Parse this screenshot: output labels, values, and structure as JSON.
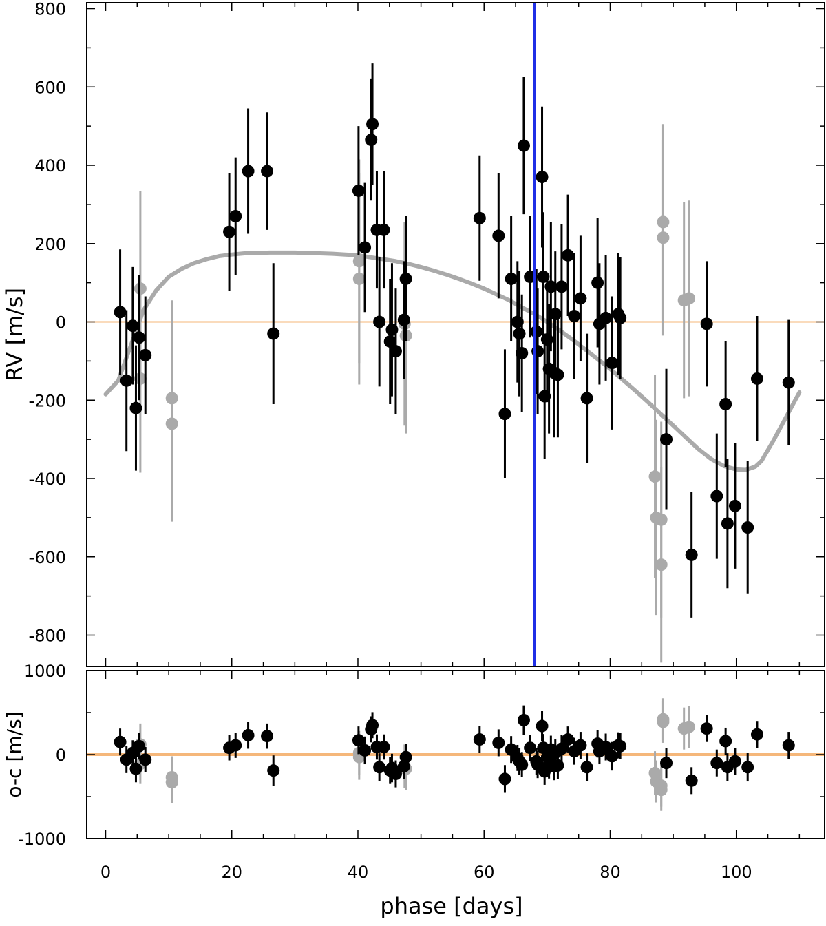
{
  "chart_data": [
    {
      "type": "scatter",
      "panel": "rv",
      "title": "",
      "xlabel": "phase [days]",
      "ylabel": "RV [m/s]",
      "xlim": [
        -3,
        114
      ],
      "ylim": [
        -880,
        815
      ],
      "x_ticks": [
        0,
        20,
        40,
        60,
        80,
        100
      ],
      "x_tick_labels": [
        "0",
        "20",
        "40",
        "60",
        "80",
        "100"
      ],
      "y_ticks": [
        -800,
        -600,
        -400,
        -200,
        0,
        200,
        400,
        600,
        800
      ],
      "y_tick_labels": [
        "-800",
        "-600",
        "-400",
        "-200",
        "0",
        "200",
        "400",
        "600",
        "800"
      ],
      "grid": false,
      "zero_line_color": "#f5b77a",
      "vertical_line": {
        "x": 68,
        "color": "#1f2fe6"
      },
      "series": [
        {
          "color": "#000000",
          "points": [
            [
              2.3,
              25,
              160
            ],
            [
              3.3,
              -150,
              180
            ],
            [
              4.3,
              -10,
              150
            ],
            [
              4.8,
              -220,
              160
            ],
            [
              5.3,
              -40,
              160
            ],
            [
              6.3,
              -85,
              150
            ],
            [
              19.6,
              230,
              150
            ],
            [
              20.6,
              270,
              150
            ],
            [
              22.6,
              385,
              160
            ],
            [
              25.6,
              385,
              150
            ],
            [
              26.6,
              -30,
              180
            ],
            [
              40.1,
              335,
              165
            ],
            [
              41.1,
              190,
              165
            ],
            [
              42.1,
              465,
              155
            ],
            [
              42.3,
              505,
              155
            ],
            [
              43.0,
              235,
              150
            ],
            [
              43.4,
              0,
              165
            ],
            [
              44.1,
              235,
              150
            ],
            [
              45.1,
              -50,
              160
            ],
            [
              45.4,
              -20,
              170
            ],
            [
              46.0,
              -75,
              160
            ],
            [
              47.3,
              5,
              150
            ],
            [
              47.6,
              110,
              160
            ],
            [
              59.3,
              265,
              160
            ],
            [
              62.3,
              220,
              160
            ],
            [
              63.3,
              -235,
              165
            ],
            [
              64.3,
              110,
              160
            ],
            [
              65.3,
              0,
              155
            ],
            [
              65.6,
              -30,
              160
            ],
            [
              66.0,
              -80,
              150
            ],
            [
              66.3,
              450,
              175
            ],
            [
              67.3,
              115,
              155
            ],
            [
              68.3,
              -25,
              160
            ],
            [
              68.5,
              -75,
              160
            ],
            [
              69.2,
              370,
              180
            ],
            [
              69.4,
              115,
              165
            ],
            [
              69.6,
              -190,
              160
            ],
            [
              70.0,
              -45,
              160
            ],
            [
              70.3,
              -120,
              165
            ],
            [
              70.6,
              90,
              165
            ],
            [
              71.1,
              -130,
              165
            ],
            [
              71.3,
              20,
              160
            ],
            [
              71.7,
              -135,
              160
            ],
            [
              72.3,
              90,
              160
            ],
            [
              73.3,
              170,
              155
            ],
            [
              74.3,
              15,
              160
            ],
            [
              75.3,
              60,
              160
            ],
            [
              76.3,
              -195,
              165
            ],
            [
              78.0,
              100,
              165
            ],
            [
              78.3,
              -5,
              155
            ],
            [
              79.3,
              10,
              160
            ],
            [
              80.3,
              -105,
              170
            ],
            [
              81.3,
              20,
              155
            ],
            [
              81.6,
              10,
              155
            ],
            [
              88.9,
              -300,
              180
            ],
            [
              95.3,
              -5,
              160
            ],
            [
              96.9,
              -445,
              160
            ],
            [
              98.3,
              -210,
              160
            ],
            [
              98.6,
              -515,
              165
            ],
            [
              99.8,
              -470,
              160
            ],
            [
              101.8,
              -525,
              170
            ],
            [
              103.3,
              -145,
              160
            ],
            [
              108.3,
              -155,
              160
            ],
            [
              92.9,
              -595,
              160
            ]
          ]
        },
        {
          "color": "#aaaaaa",
          "points": [
            [
              5.5,
              85,
              250
            ],
            [
              5.5,
              -145,
              240
            ],
            [
              10.5,
              -195,
              250
            ],
            [
              10.5,
              -260,
              250
            ],
            [
              40.2,
              155,
              260
            ],
            [
              40.2,
              110,
              270
            ],
            [
              47.4,
              -5,
              260
            ],
            [
              47.6,
              -35,
              250
            ],
            [
              87.1,
              -395,
              260
            ],
            [
              87.3,
              -500,
              250
            ],
            [
              88.1,
              -505,
              250
            ],
            [
              88.1,
              -620,
              250
            ],
            [
              88.4,
              255,
              250
            ],
            [
              88.4,
              215,
              250
            ],
            [
              91.7,
              55,
              250
            ],
            [
              92.5,
              60,
              250
            ]
          ]
        }
      ],
      "model_curve": {
        "color": "#aaaaaa",
        "x": [
          0,
          2,
          4,
          6,
          8,
          10,
          12,
          14,
          16,
          18,
          20,
          22,
          24,
          26,
          28,
          30,
          32,
          34,
          36,
          38,
          40,
          42,
          44,
          46,
          48,
          50,
          52,
          54,
          56,
          58,
          60,
          62,
          64,
          66,
          68,
          70,
          72,
          74,
          76,
          78,
          80,
          82,
          84,
          86,
          88,
          90,
          92,
          94,
          96,
          98,
          100,
          101.5,
          103,
          104,
          106,
          108,
          110
        ],
        "y": [
          -185,
          -150,
          -60,
          30,
          80,
          115,
          135,
          150,
          160,
          168,
          172,
          175,
          176,
          177,
          177,
          177,
          176,
          175,
          174,
          172,
          170,
          165,
          160,
          155,
          148,
          140,
          131,
          121,
          110,
          98,
          85,
          70,
          55,
          37,
          20,
          0,
          -22,
          -45,
          -70,
          -95,
          -120,
          -148,
          -176,
          -205,
          -235,
          -265,
          -295,
          -325,
          -350,
          -368,
          -377,
          -378,
          -370,
          -355,
          -300,
          -240,
          -180
        ]
      }
    },
    {
      "type": "scatter",
      "panel": "residuals",
      "title": "",
      "xlabel": "phase [days]",
      "ylabel": "o-c [m/s]",
      "xlim": [
        -3,
        114
      ],
      "ylim": [
        -1000,
        1000
      ],
      "x_ticks": [
        0,
        20,
        40,
        60,
        80,
        100
      ],
      "x_tick_labels": [
        "0",
        "20",
        "40",
        "60",
        "80",
        "100"
      ],
      "y_ticks": [
        -1000,
        0,
        1000
      ],
      "y_tick_labels": [
        "-1000",
        "0",
        "1000"
      ],
      "grid": false,
      "zero_line_color": "#f5b77a",
      "series": [
        {
          "color": "#000000",
          "points": [
            [
              2.3,
              150,
              160
            ],
            [
              3.3,
              -60,
              160
            ],
            [
              4.3,
              20,
              150
            ],
            [
              4.8,
              -170,
              160
            ],
            [
              5.3,
              100,
              160
            ],
            [
              6.3,
              -60,
              150
            ],
            [
              19.6,
              80,
              150
            ],
            [
              20.6,
              110,
              150
            ],
            [
              22.6,
              230,
              160
            ],
            [
              25.6,
              220,
              150
            ],
            [
              26.6,
              -190,
              180
            ],
            [
              40.1,
              170,
              165
            ],
            [
              41.1,
              50,
              165
            ],
            [
              42.1,
              300,
              155
            ],
            [
              42.3,
              350,
              155
            ],
            [
              43.0,
              90,
              150
            ],
            [
              43.4,
              -150,
              165
            ],
            [
              44.1,
              90,
              150
            ],
            [
              45.1,
              -190,
              160
            ],
            [
              45.4,
              -160,
              170
            ],
            [
              46.0,
              -230,
              160
            ],
            [
              47.3,
              -140,
              150
            ],
            [
              47.6,
              -30,
              160
            ],
            [
              59.3,
              180,
              160
            ],
            [
              62.3,
              140,
              160
            ],
            [
              63.3,
              -290,
              165
            ],
            [
              64.3,
              60,
              160
            ],
            [
              65.3,
              -40,
              155
            ],
            [
              65.6,
              -80,
              160
            ],
            [
              66.0,
              -120,
              150
            ],
            [
              66.3,
              410,
              175
            ],
            [
              67.3,
              80,
              155
            ],
            [
              68.3,
              -80,
              160
            ],
            [
              68.5,
              -120,
              160
            ],
            [
              69.2,
              340,
              180
            ],
            [
              69.4,
              80,
              165
            ],
            [
              69.6,
              -200,
              160
            ],
            [
              70.0,
              -30,
              160
            ],
            [
              70.3,
              -120,
              165
            ],
            [
              70.6,
              60,
              165
            ],
            [
              71.1,
              -140,
              165
            ],
            [
              71.3,
              20,
              160
            ],
            [
              71.7,
              -130,
              160
            ],
            [
              72.3,
              70,
              160
            ],
            [
              73.3,
              180,
              155
            ],
            [
              74.3,
              40,
              160
            ],
            [
              75.3,
              110,
              160
            ],
            [
              76.3,
              -150,
              165
            ],
            [
              78.0,
              130,
              165
            ],
            [
              78.3,
              40,
              155
            ],
            [
              79.3,
              90,
              160
            ],
            [
              80.3,
              -20,
              170
            ],
            [
              81.3,
              110,
              155
            ],
            [
              81.6,
              100,
              155
            ],
            [
              88.9,
              -100,
              180
            ],
            [
              92.9,
              -310,
              160
            ],
            [
              95.3,
              310,
              160
            ],
            [
              96.9,
              -100,
              160
            ],
            [
              98.3,
              160,
              160
            ],
            [
              98.6,
              -150,
              165
            ],
            [
              99.8,
              -80,
              160
            ],
            [
              101.8,
              -150,
              170
            ],
            [
              103.3,
              240,
              160
            ],
            [
              108.3,
              110,
              160
            ]
          ]
        },
        {
          "color": "#aaaaaa",
          "points": [
            [
              5.5,
              120,
              250
            ],
            [
              5.5,
              -110,
              240
            ],
            [
              10.5,
              -270,
              250
            ],
            [
              10.5,
              -330,
              250
            ],
            [
              40.2,
              20,
              260
            ],
            [
              40.2,
              -30,
              270
            ],
            [
              47.4,
              -140,
              260
            ],
            [
              47.6,
              -170,
              250
            ],
            [
              87.1,
              -220,
              260
            ],
            [
              87.3,
              -320,
              250
            ],
            [
              88.1,
              -370,
              250
            ],
            [
              88.1,
              -420,
              250
            ],
            [
              88.4,
              420,
              250
            ],
            [
              88.4,
              390,
              250
            ],
            [
              91.7,
              310,
              250
            ],
            [
              92.5,
              330,
              250
            ]
          ]
        }
      ]
    }
  ]
}
